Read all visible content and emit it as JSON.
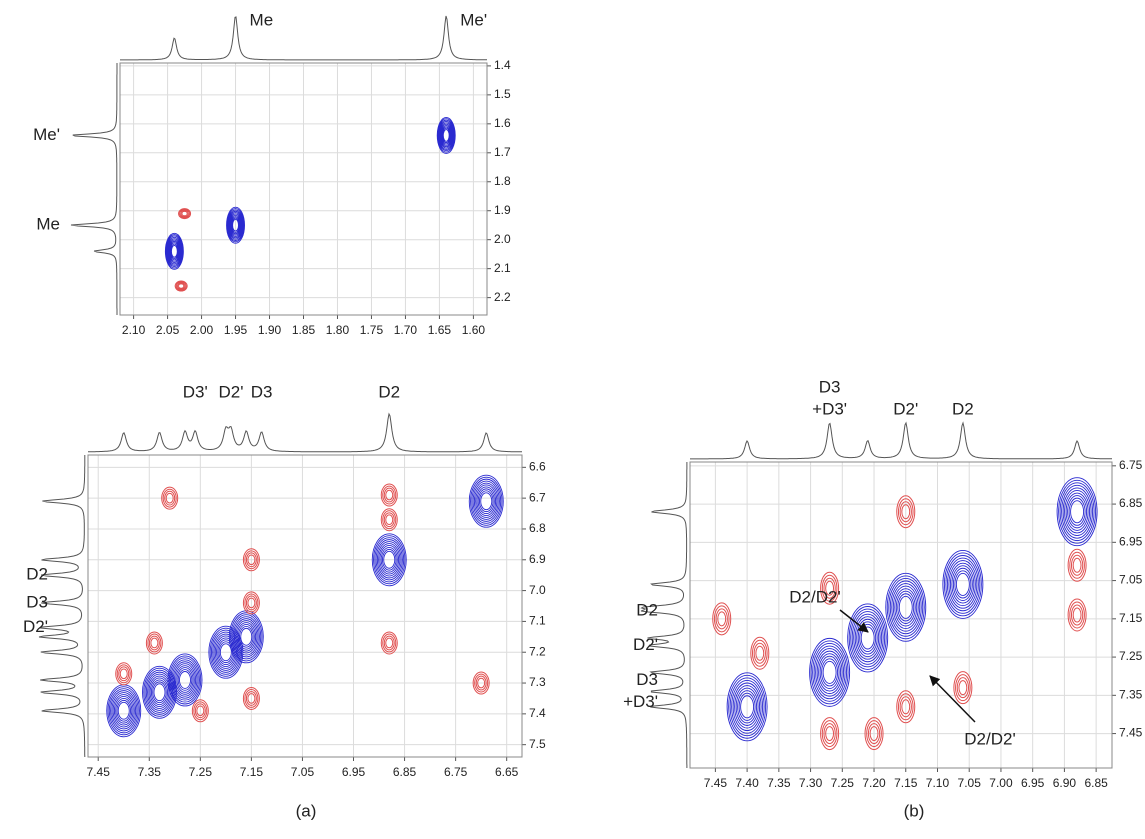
{
  "chart_data": [
    {
      "type": "contour",
      "xlim": [
        2.12,
        1.58
      ],
      "ylim": [
        1.39,
        2.26
      ],
      "xticks": [
        {
          "value": 2.1,
          "label": "2.10"
        },
        2.05,
        {
          "value": 2.0,
          "label": "2.00"
        },
        1.95,
        {
          "value": 1.9,
          "label": "1.90"
        },
        1.85,
        {
          "value": 1.8,
          "label": "1.80"
        },
        1.75,
        {
          "value": 1.7,
          "label": "1.70"
        },
        1.65,
        {
          "value": 1.6,
          "label": "1.60"
        }
      ],
      "yticks": [
        1.4,
        1.5,
        1.6,
        1.7,
        1.8,
        1.9,
        {
          "value": 2.0,
          "label": "2.0"
        },
        2.1,
        2.2
      ],
      "grid": true,
      "series": [
        {
          "color": "#2a2ad0",
          "x": [
            2.04,
            1.95,
            1.64
          ],
          "values": [
            2.04,
            1.95,
            1.64
          ]
        },
        {
          "color": "#e05050",
          "x": [
            2.025,
            2.03
          ],
          "values": [
            1.91,
            2.16
          ]
        }
      ],
      "top_labels": [
        {
          "lines": [
            "Me"
          ],
          "value": 1.95
        },
        {
          "lines": [
            "Me'"
          ],
          "value": 1.64
        }
      ],
      "left_labels": [
        {
          "lines": [
            "Me'"
          ],
          "value": 1.64
        },
        {
          "lines": [
            "Me"
          ],
          "value": 1.95
        }
      ]
    },
    {
      "type": "contour",
      "xlim": [
        7.47,
        6.62
      ],
      "ylim": [
        6.56,
        7.54
      ],
      "xticks": [
        7.45,
        7.35,
        7.25,
        7.15,
        7.05,
        6.95,
        6.85,
        6.75,
        6.65
      ],
      "yticks": [
        6.6,
        6.7,
        6.8,
        6.9,
        {
          "value": 7.0,
          "label": "7.0"
        },
        7.1,
        7.2,
        7.3,
        7.4,
        7.5
      ],
      "grid": true,
      "series": [
        {
          "color": "#2a2ad0",
          "x": [
            7.4,
            7.33,
            7.28,
            7.2,
            7.16,
            6.88,
            6.69
          ],
          "values": [
            7.39,
            7.33,
            7.29,
            7.2,
            7.15,
            6.9,
            6.71
          ]
        },
        {
          "color": "#e05050",
          "x": [
            7.31,
            7.15,
            7.15,
            7.34,
            7.4,
            7.25,
            7.15,
            6.88,
            6.88,
            6.88,
            6.7
          ],
          "values": [
            6.7,
            6.9,
            7.04,
            7.17,
            7.27,
            7.39,
            7.35,
            6.69,
            6.77,
            7.17,
            7.3
          ]
        }
      ],
      "top_labels": [
        {
          "lines": [
            "D3'"
          ],
          "value": 7.26
        },
        {
          "lines": [
            "D2'"
          ],
          "value": 7.19
        },
        {
          "lines": [
            "D3"
          ],
          "value": 7.13
        },
        {
          "lines": [
            "D2"
          ],
          "value": 6.88
        }
      ],
      "left_labels": [
        {
          "lines": [
            "D2"
          ],
          "value": 6.95
        },
        {
          "lines": [
            "D3"
          ],
          "value": 7.04
        },
        {
          "lines": [
            "D2'"
          ],
          "value": 7.12
        }
      ],
      "caption": "(a)"
    },
    {
      "type": "contour",
      "xlim": [
        7.49,
        6.825
      ],
      "ylim": [
        6.74,
        7.54
      ],
      "xticks": [
        7.45,
        {
          "value": 7.4,
          "label": "7.40"
        },
        7.35,
        {
          "value": 7.3,
          "label": "7.30"
        },
        7.25,
        {
          "value": 7.2,
          "label": "7.20"
        },
        7.15,
        {
          "value": 7.1,
          "label": "7.10"
        },
        7.05,
        {
          "value": 7.0,
          "label": "7.00"
        },
        6.95,
        {
          "value": 6.9,
          "label": "6.90"
        },
        6.85
      ],
      "yticks": [
        6.75,
        6.85,
        6.95,
        7.05,
        7.15,
        7.25,
        7.35,
        7.45
      ],
      "grid": true,
      "series": [
        {
          "color": "#2a2ad0",
          "x": [
            7.4,
            7.27,
            7.21,
            7.15,
            7.06,
            6.88
          ],
          "values": [
            7.38,
            7.29,
            7.2,
            7.12,
            7.06,
            6.87
          ]
        },
        {
          "color": "#e05050",
          "x": [
            7.44,
            7.38,
            7.27,
            7.27,
            7.2,
            7.15,
            7.15,
            7.06,
            6.88,
            6.88
          ],
          "values": [
            7.15,
            7.24,
            7.07,
            7.45,
            7.45,
            6.87,
            7.38,
            7.33,
            7.01,
            7.14
          ]
        }
      ],
      "top_labels": [
        {
          "lines": [
            "D3",
            "+D3'"
          ],
          "value": 7.27
        },
        {
          "lines": [
            "D2'"
          ],
          "value": 7.15
        },
        {
          "lines": [
            "D2"
          ],
          "value": 7.06
        }
      ],
      "left_labels": [
        {
          "lines": [
            "D2"
          ],
          "value": 7.13
        },
        {
          "lines": [
            "D2'"
          ],
          "value": 7.22
        },
        {
          "lines": [
            "D3",
            "+D3'"
          ],
          "value": 7.34
        }
      ],
      "callouts": [
        {
          "text": "D2/D2'"
        },
        {
          "text": "D2/D2'"
        }
      ],
      "caption": "(b)"
    }
  ]
}
